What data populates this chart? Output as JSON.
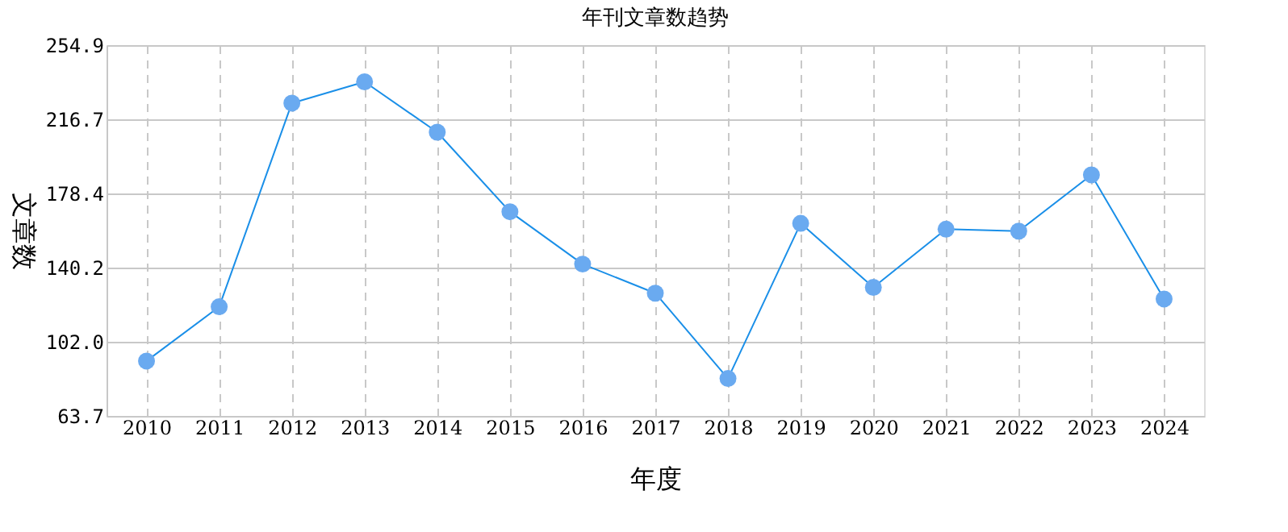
{
  "chart_data": {
    "type": "line",
    "title": "年刊文章数趋势",
    "xlabel": "年度",
    "ylabel": "文章数",
    "categories": [
      "2010",
      "2011",
      "2012",
      "2013",
      "2014",
      "2015",
      "2016",
      "2017",
      "2018",
      "2019",
      "2020",
      "2021",
      "2022",
      "2023",
      "2024"
    ],
    "series": [
      {
        "color": "#1a8fe8",
        "values": [
          92,
          120,
          225,
          236,
          210,
          169,
          142,
          127,
          83,
          163,
          130,
          160,
          159,
          188,
          124
        ]
      }
    ],
    "ylim": [
      63.7,
      254.9
    ],
    "yticks": [
      {
        "value": 63.7,
        "label": "63.7"
      },
      {
        "value": 102.0,
        "label": "102.0"
      },
      {
        "value": 140.2,
        "label": "140.2"
      },
      {
        "value": 178.4,
        "label": "178.4"
      },
      {
        "value": 216.7,
        "label": "216.7"
      },
      {
        "value": 254.9,
        "label": "254.9"
      }
    ],
    "grid": true,
    "marker": "circle",
    "line_style": "solid"
  }
}
